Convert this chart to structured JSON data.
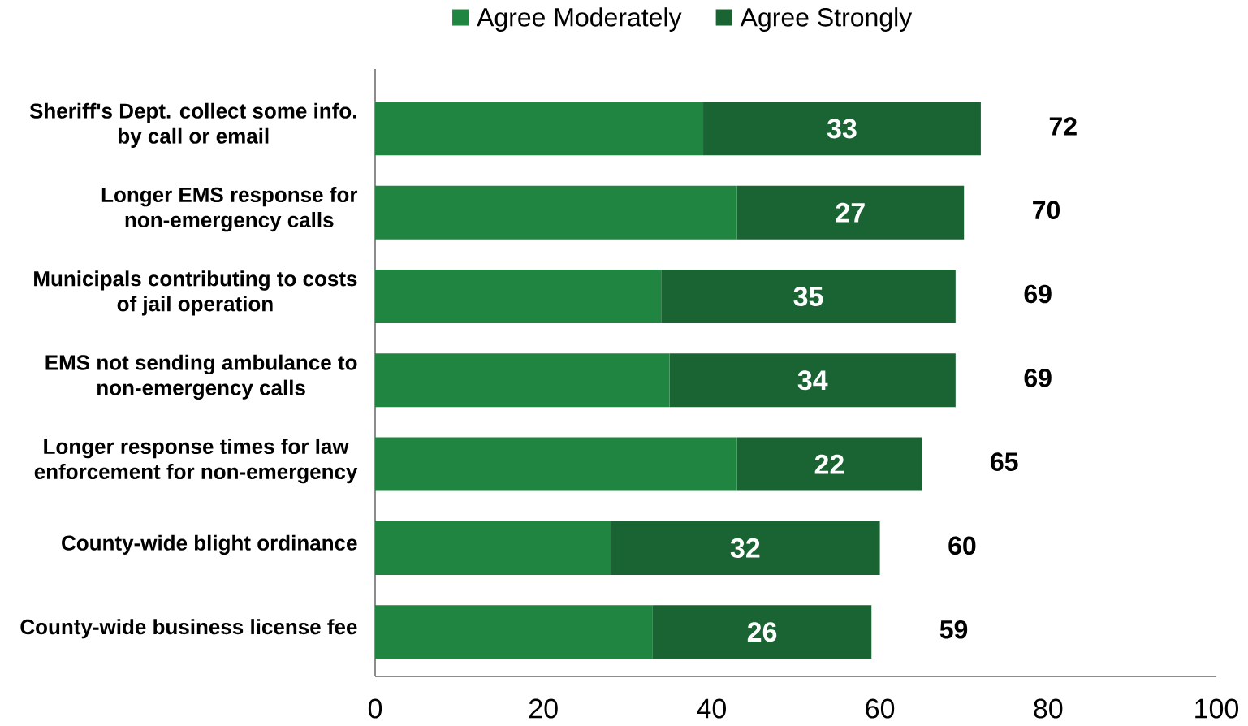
{
  "chart_data": {
    "type": "bar",
    "orientation": "horizontal",
    "stacked": true,
    "legend": "top",
    "categories": [
      "Sheriff's Dept. collect some info. by call or email",
      "Longer EMS response for non-emergency calls",
      "Municipals contributing to costs of jail operation",
      "EMS not sending ambulance to non-emergency calls",
      "Longer response times for law enforcement for non-emergency",
      "County-wide blight ordinance",
      "County-wide business license fee"
    ],
    "series": [
      {
        "name": "Agree Moderately",
        "color": "#1f8540",
        "values": [
          39,
          43,
          34,
          35,
          43,
          28,
          33
        ]
      },
      {
        "name": "Agree Strongly",
        "color": "#1a6333",
        "values": [
          33,
          27,
          35,
          34,
          22,
          32,
          26
        ],
        "value_labels": [
          "33",
          "27",
          "35",
          "34",
          "22",
          "32",
          "26"
        ]
      }
    ],
    "totals": [
      "72",
      "70",
      "69",
      "69",
      "65",
      "60",
      "59"
    ],
    "xlim": [
      0,
      100
    ],
    "xticks": [
      0,
      20,
      40,
      60,
      80,
      100
    ]
  }
}
